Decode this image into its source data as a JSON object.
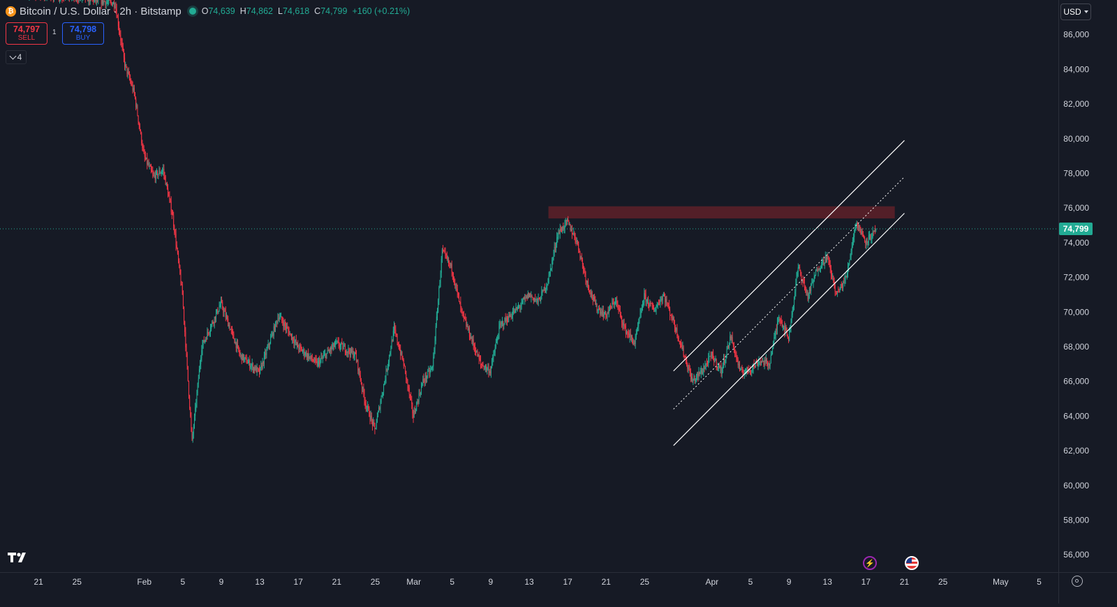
{
  "header": {
    "symbol_icon": "bitcoin-icon",
    "title": "Bitcoin / U.S. Dollar · 2h · Bitstamp",
    "o_label": "O",
    "o_value": "74,639",
    "h_label": "H",
    "h_value": "74,862",
    "l_label": "L",
    "l_value": "74,618",
    "c_label": "C",
    "c_value": "74,799",
    "change": "+160 (+0.21%)"
  },
  "trade": {
    "sell_price": "74,797",
    "sell_label": "SELL",
    "buy_price": "74,798",
    "buy_label": "BUY",
    "spread": "1"
  },
  "indicators_toggle": {
    "count": "4"
  },
  "currency": {
    "label": "USD"
  },
  "colors": {
    "background": "#161a25",
    "up": "#22ab94",
    "down": "#f23645",
    "resistance_zone": "#5e2129",
    "channel": "#ffffff",
    "last_price": "#22ab94"
  },
  "events": [
    {
      "icon": "earnings-lightning-icon"
    },
    {
      "icon": "us-flag-icon"
    }
  ],
  "chart_data": {
    "type": "candlestick",
    "symbol": "Bitcoin / U.S. Dollar",
    "interval": "2h",
    "exchange": "Bitstamp",
    "last_price": 74799,
    "last_price_label": "74,799",
    "ylim": [
      55000,
      88000
    ],
    "y_ticks": [
      56000,
      58000,
      60000,
      62000,
      64000,
      66000,
      68000,
      70000,
      72000,
      74000,
      76000,
      78000,
      80000,
      82000,
      84000,
      86000
    ],
    "y_tick_labels": [
      "56,000",
      "58,000",
      "60,000",
      "62,000",
      "64,000",
      "66,000",
      "68,000",
      "70,000",
      "72,000",
      "74,000",
      "76,000",
      "78,000",
      "80,000",
      "82,000",
      "84,000",
      "86,000"
    ],
    "xlim": [
      "2026-01-17",
      "2026-05-07"
    ],
    "x_ticks": [
      {
        "date": "2026-01-21",
        "label": "21"
      },
      {
        "date": "2026-01-25",
        "label": "25"
      },
      {
        "date": "2026-02-01",
        "label": "Feb"
      },
      {
        "date": "2026-02-05",
        "label": "5"
      },
      {
        "date": "2026-02-09",
        "label": "9"
      },
      {
        "date": "2026-02-13",
        "label": "13"
      },
      {
        "date": "2026-02-17",
        "label": "17"
      },
      {
        "date": "2026-02-21",
        "label": "21"
      },
      {
        "date": "2026-02-25",
        "label": "25"
      },
      {
        "date": "2026-03-01",
        "label": "Mar"
      },
      {
        "date": "2026-03-05",
        "label": "5"
      },
      {
        "date": "2026-03-09",
        "label": "9"
      },
      {
        "date": "2026-03-13",
        "label": "13"
      },
      {
        "date": "2026-03-17",
        "label": "17"
      },
      {
        "date": "2026-03-21",
        "label": "21"
      },
      {
        "date": "2026-03-25",
        "label": "25"
      },
      {
        "date": "2026-04-01",
        "label": "Apr"
      },
      {
        "date": "2026-04-05",
        "label": "5"
      },
      {
        "date": "2026-04-09",
        "label": "9"
      },
      {
        "date": "2026-04-13",
        "label": "13"
      },
      {
        "date": "2026-04-17",
        "label": "17"
      },
      {
        "date": "2026-04-21",
        "label": "21"
      },
      {
        "date": "2026-04-25",
        "label": "25"
      },
      {
        "date": "2026-05-01",
        "label": "May"
      },
      {
        "date": "2026-05-05",
        "label": "5"
      }
    ],
    "price_path": [
      [
        "2026-01-17",
        88500
      ],
      [
        "2026-01-25",
        88200
      ],
      [
        "2026-01-29",
        87800
      ],
      [
        "2026-01-30",
        84300
      ],
      [
        "2026-01-31",
        82600
      ],
      [
        "2026-02-01",
        79000
      ],
      [
        "2026-02-02",
        77800
      ],
      [
        "2026-02-03",
        78200
      ],
      [
        "2026-02-04",
        75500
      ],
      [
        "2026-02-05",
        71000
      ],
      [
        "2026-02-06",
        62500
      ],
      [
        "2026-02-07",
        68000
      ],
      [
        "2026-02-09",
        70500
      ],
      [
        "2026-02-11",
        67500
      ],
      [
        "2026-02-13",
        66500
      ],
      [
        "2026-02-15",
        69800
      ],
      [
        "2026-02-17",
        68000
      ],
      [
        "2026-02-19",
        67000
      ],
      [
        "2026-02-21",
        68200
      ],
      [
        "2026-02-23",
        67500
      ],
      [
        "2026-02-24",
        64800
      ],
      [
        "2026-02-25",
        63200
      ],
      [
        "2026-02-26",
        66000
      ],
      [
        "2026-02-27",
        69000
      ],
      [
        "2026-02-28",
        67000
      ],
      [
        "2026-03-01",
        64000
      ],
      [
        "2026-03-02",
        66000
      ],
      [
        "2026-03-03",
        66800
      ],
      [
        "2026-03-04",
        73500
      ],
      [
        "2026-03-05",
        72500
      ],
      [
        "2026-03-06",
        70000
      ],
      [
        "2026-03-08",
        67000
      ],
      [
        "2026-03-09",
        66600
      ],
      [
        "2026-03-10",
        69200
      ],
      [
        "2026-03-12",
        70300
      ],
      [
        "2026-03-13",
        71000
      ],
      [
        "2026-03-14",
        70600
      ],
      [
        "2026-03-15",
        71800
      ],
      [
        "2026-03-16",
        74500
      ],
      [
        "2026-03-17",
        75200
      ],
      [
        "2026-03-18",
        74100
      ],
      [
        "2026-03-19",
        71800
      ],
      [
        "2026-03-20",
        70300
      ],
      [
        "2026-03-21",
        69800
      ],
      [
        "2026-03-22",
        70700
      ],
      [
        "2026-03-23",
        69000
      ],
      [
        "2026-03-24",
        68200
      ],
      [
        "2026-03-25",
        70900
      ],
      [
        "2026-03-26",
        70100
      ],
      [
        "2026-03-27",
        71000
      ],
      [
        "2026-03-28",
        69500
      ],
      [
        "2026-03-29",
        67800
      ],
      [
        "2026-03-30",
        66000
      ],
      [
        "2026-03-31",
        66600
      ],
      [
        "2026-04-01",
        67500
      ],
      [
        "2026-04-02",
        66600
      ],
      [
        "2026-04-03",
        68600
      ],
      [
        "2026-04-04",
        66500
      ],
      [
        "2026-04-05",
        66700
      ],
      [
        "2026-04-06",
        67200
      ],
      [
        "2026-04-07",
        67000
      ],
      [
        "2026-04-08",
        69800
      ],
      [
        "2026-04-09",
        68500
      ],
      [
        "2026-04-10",
        72600
      ],
      [
        "2026-04-11",
        70900
      ],
      [
        "2026-04-12",
        72500
      ],
      [
        "2026-04-13",
        73200
      ],
      [
        "2026-04-14",
        71000
      ],
      [
        "2026-04-15",
        72000
      ],
      [
        "2026-04-16",
        75200
      ],
      [
        "2026-04-17",
        74100
      ],
      [
        "2026-04-18",
        74600
      ]
    ],
    "annotations": [
      {
        "type": "resistance_zone",
        "from": "2026-03-15",
        "to": "2026-04-20",
        "y_low": 75400,
        "y_high": 76100,
        "label": ""
      },
      {
        "type": "channel_upper",
        "points": [
          [
            "2026-03-28",
            66600
          ],
          [
            "2026-04-21",
            79900
          ]
        ]
      },
      {
        "type": "channel_middle",
        "points": [
          [
            "2026-03-28",
            64400
          ],
          [
            "2026-04-21",
            77800
          ]
        ]
      },
      {
        "type": "channel_lower",
        "points": [
          [
            "2026-03-28",
            62300
          ],
          [
            "2026-04-21",
            75700
          ]
        ]
      }
    ]
  }
}
